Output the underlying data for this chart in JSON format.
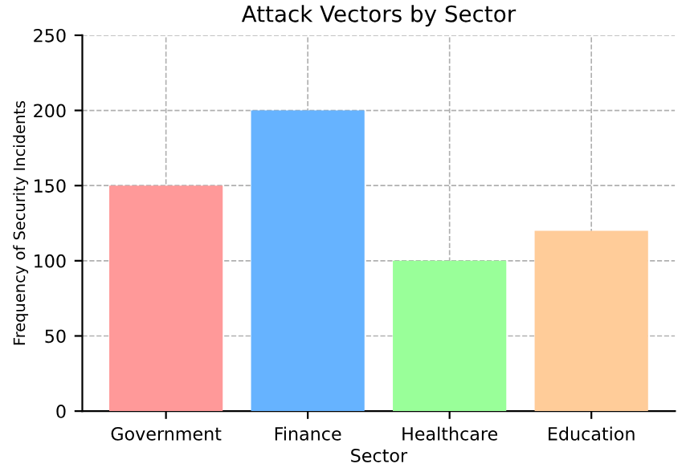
{
  "chart_data": {
    "type": "bar",
    "title": "Attack Vectors by Sector",
    "xlabel": "Sector",
    "ylabel": "Frequency of Security Incidents",
    "categories": [
      "Government",
      "Finance",
      "Healthcare",
      "Education"
    ],
    "values": [
      150,
      200,
      100,
      120
    ],
    "colors": [
      "#ff9999",
      "#66b3ff",
      "#99ff99",
      "#ffcc99"
    ],
    "ylim": [
      0,
      250
    ],
    "yticks": [
      0,
      50,
      100,
      150,
      200,
      250
    ],
    "grid": true
  }
}
